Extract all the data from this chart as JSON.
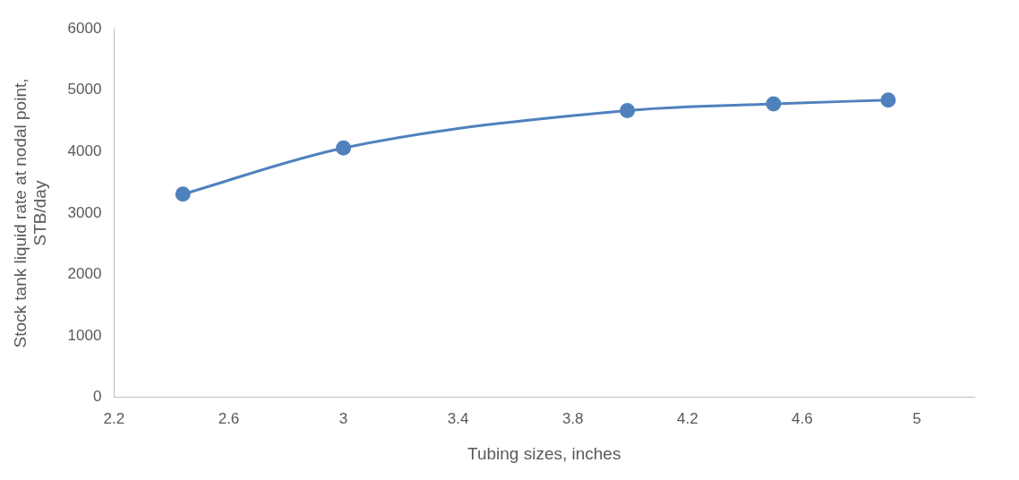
{
  "chart_data": {
    "type": "line",
    "xlabel": "Tubing sizes, inches",
    "ylabel": "Stock tank liquid rate at nodal point, STB/day",
    "x": [
      2.44,
      3.0,
      3.99,
      4.5,
      4.9
    ],
    "series": [
      {
        "color": "#4f81bd",
        "values": [
          3310,
          4060,
          4670,
          4780,
          4840
        ]
      }
    ],
    "xlim": [
      2.2,
      5.2
    ],
    "xticks": [
      2.2,
      2.6,
      3,
      3.4,
      3.8,
      4.2,
      4.6,
      5
    ],
    "ylim": [
      0,
      6000
    ],
    "yticks": [
      0,
      1000,
      2000,
      3000,
      4000,
      5000,
      6000
    ],
    "grid": false,
    "legend": false,
    "marker": "circle",
    "line_style": "solid"
  }
}
